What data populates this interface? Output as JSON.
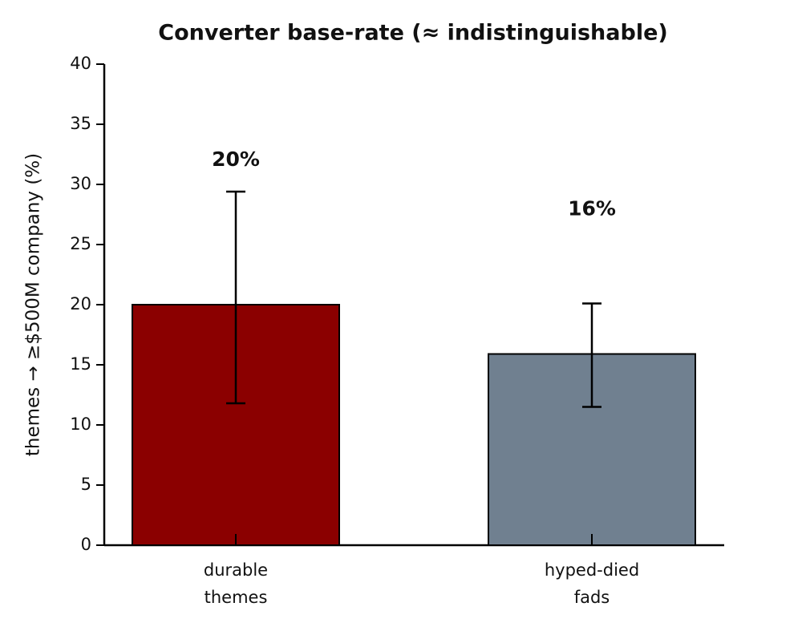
{
  "chart_data": {
    "type": "bar",
    "title": "Converter base-rate (≈ indistinguishable)",
    "y_label": "themes → ≥$500M company (%)",
    "categories": [
      "durable\nthemes",
      "hyped-died\nfads"
    ],
    "values": [
      20,
      15.9
    ],
    "value_labels": [
      "20%",
      "16%"
    ],
    "error_low": [
      8.2,
      4.4
    ],
    "error_high": [
      9.4,
      4.2
    ],
    "colors": [
      "#8b0000",
      "#708090"
    ],
    "ylim": [
      0,
      40
    ],
    "yticks": [
      0,
      5,
      10,
      15,
      20,
      25,
      30,
      35,
      40
    ],
    "grid": false
  }
}
